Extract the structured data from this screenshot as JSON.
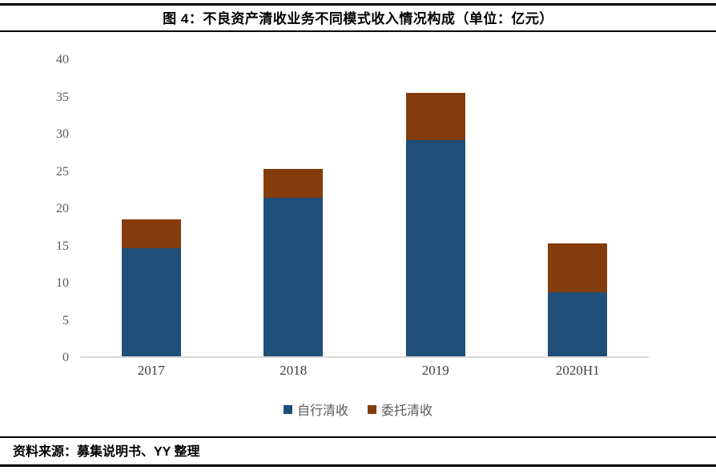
{
  "title": "图 4：不良资产清收业务不同模式收入情况构成（单位：亿元）",
  "source": "资料来源：募集说明书、YY 整理",
  "chart_data": {
    "type": "bar",
    "stacked": true,
    "title": "图 4：不良资产清收业务不同模式收入情况构成（单位：亿元）",
    "unit": "亿元",
    "categories": [
      "2017",
      "2018",
      "2019",
      "2020H1"
    ],
    "series": [
      {
        "name": "自行清收",
        "color": "#1F4E79",
        "values": [
          14.6,
          21.4,
          29.2,
          8.6
        ]
      },
      {
        "name": "委托清收",
        "color": "#843C0C",
        "values": [
          3.9,
          3.9,
          6.4,
          6.6
        ]
      }
    ],
    "totals": [
      18.5,
      25.3,
      35.6,
      15.2
    ],
    "ylim": [
      0,
      40
    ],
    "yticks": [
      0,
      5,
      10,
      15,
      20,
      25,
      30,
      35,
      40
    ],
    "grid": false,
    "legend_position": "bottom",
    "colors": {
      "axis_line": "#D9D9D9",
      "tick_text": "#595959",
      "title_text": "#000000"
    }
  }
}
